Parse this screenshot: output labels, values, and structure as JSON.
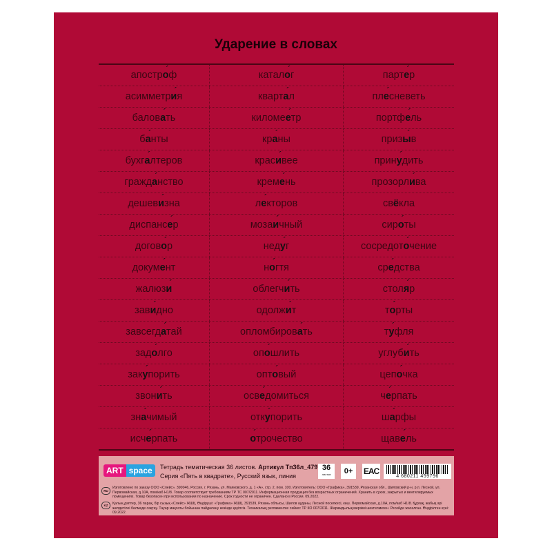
{
  "title": "Ударение в словах",
  "words": [
    [
      {
        "pre": "апостр",
        "s": "о",
        "post": "ф"
      },
      {
        "pre": "катал",
        "s": "о",
        "post": "г"
      },
      {
        "pre": "парт",
        "s": "е",
        "post": "р"
      }
    ],
    [
      {
        "pre": "асимметр",
        "s": "и",
        "post": "я"
      },
      {
        "pre": "кварт",
        "s": "а",
        "post": "л"
      },
      {
        "pre": "пл",
        "s": "е",
        "post": "сневеть"
      }
    ],
    [
      {
        "pre": "балов",
        "s": "а",
        "post": "ть"
      },
      {
        "pre": "киломе",
        "s": "е",
        "post": "тр"
      },
      {
        "pre": "портф",
        "s": "е",
        "post": "ль"
      }
    ],
    [
      {
        "pre": "б",
        "s": "а",
        "post": "нты"
      },
      {
        "pre": "кр",
        "s": "а",
        "post": "ны"
      },
      {
        "pre": "приз",
        "s": "ы",
        "post": "в"
      }
    ],
    [
      {
        "pre": "бухг",
        "s": "а",
        "post": "лтеров"
      },
      {
        "pre": "крас",
        "s": "и",
        "post": "вее"
      },
      {
        "pre": "прин",
        "s": "у",
        "post": "дить"
      }
    ],
    [
      {
        "pre": "гражд",
        "s": "а",
        "post": "нство"
      },
      {
        "pre": "крем",
        "s": "е",
        "post": "нь"
      },
      {
        "pre": "прозорл",
        "s": "и",
        "post": "ва"
      }
    ],
    [
      {
        "pre": "дешев",
        "s": "и",
        "post": "зна"
      },
      {
        "pre": "л",
        "s": "е",
        "post": "кторов"
      },
      {
        "pre": "св",
        "s": "ё",
        "post": "кла"
      }
    ],
    [
      {
        "pre": "диспанс",
        "s": "е",
        "post": "р"
      },
      {
        "pre": "моза",
        "s": "и",
        "post": "чный"
      },
      {
        "pre": "сир",
        "s": "о",
        "post": "ты"
      }
    ],
    [
      {
        "pre": "догов",
        "s": "о",
        "post": "р"
      },
      {
        "pre": "нед",
        "s": "у",
        "post": "г"
      },
      {
        "pre": "сосредот",
        "s": "о",
        "post": "чение"
      }
    ],
    [
      {
        "pre": "докум",
        "s": "е",
        "post": "нт"
      },
      {
        "pre": "н",
        "s": "о",
        "post": "гтя"
      },
      {
        "pre": "ср",
        "s": "е",
        "post": "дства"
      }
    ],
    [
      {
        "pre": "жалюз",
        "s": "и",
        "post": ""
      },
      {
        "pre": "облегч",
        "s": "и",
        "post": "ть"
      },
      {
        "pre": "столяр",
        "s": "",
        "post": ""
      }
    ],
    [
      {
        "pre": "зав",
        "s": "и",
        "post": "дно"
      },
      {
        "pre": "одолж",
        "s": "и",
        "post": "т"
      },
      {
        "pre": "т",
        "s": "о",
        "post": "рты"
      }
    ],
    [
      {
        "pre": "завсегд",
        "s": "а",
        "post": "тай"
      },
      {
        "pre": "опломбиров",
        "s": "а",
        "post": "ть"
      },
      {
        "pre": "т",
        "s": "у",
        "post": "фля"
      }
    ],
    [
      {
        "pre": "зад",
        "s": "о",
        "post": "лго"
      },
      {
        "pre": "оп",
        "s": "о",
        "post": "шлить"
      },
      {
        "pre": "углуб",
        "s": "и",
        "post": "ть"
      }
    ],
    [
      {
        "pre": "зак",
        "s": "у",
        "post": "порить"
      },
      {
        "pre": "опт",
        "s": "о",
        "post": "вый"
      },
      {
        "pre": "цеп",
        "s": "о",
        "post": "чка"
      }
    ],
    [
      {
        "pre": "звон",
        "s": "и",
        "post": "ть"
      },
      {
        "pre": "осв",
        "s": "е",
        "post": "домиться"
      },
      {
        "pre": "ч",
        "s": "е",
        "post": "рпать"
      }
    ],
    [
      {
        "pre": "зн",
        "s": "а",
        "post": "чимый"
      },
      {
        "pre": "отк",
        "s": "у",
        "post": "порить"
      },
      {
        "pre": "ш",
        "s": "а",
        "post": "рфы"
      }
    ],
    [
      {
        "pre": "исч",
        "s": "е",
        "post": "рпать"
      },
      {
        "pre": "",
        "s": "о",
        "post": "трочество"
      },
      {
        "pre": "щав",
        "s": "е",
        "post": "ль"
      }
    ]
  ],
  "panel": {
    "logo_left": "ART",
    "logo_right": "space",
    "line1": "Тетрадь тематическая 36 листов.",
    "article": "Артикул Тп36л_47979",
    "line2": "Серия «Пять в квадрате», Русский язык, линия",
    "sheets": "36",
    "sheets_sub": "листов",
    "age": "0+",
    "eac": "EAC",
    "barcode": "4 680211 459796",
    "ru_code": "RU",
    "ru_text": "Изготовлено по заказу ООО «Слейс», 390046, Россия, г. Рязань, ул. Маяковского, д. 1 «А», стр. 2, пом. 100. Изготовитель: ООО «Графика», 391539, Рязанская обл., Шиловский р-н, р.п. Лесной, ул. Первомайская, д.10А, пом/каб Н1/8. Товар соответствует требованиям ТР ТС 007/2011. Информационная продукция без возрастных ограничений. Хранить в сухих, закрытых и вентилируемых помещениях. Товар безопасен при использовании по назначению. Срок годности не ограничен. Сделано в России. 09.2022.",
    "kz_code": "KZ",
    "kz_text": "Қалың дәптер, 36 парақ, бір сызық «Слейс» ЖШҚ, Өндіруші: «Графика» ЖШҚ, 391539, Рязань облысы, Шилов ауданы, Лесной поселкесі, көш. Первомайская, д.10А, пом/каб Н1/8. Құрғақ, жабық әрі желдетілеі бөлмеде сақтау. Тауар мақсаты бойынша пайдалану кезінде қауіпсіз. Техникалық регламентке сәйкес ТР КО 007/2011. Жарамдылық мерзімі шектелмеген. Ресейде жасалған. Өндірілген күні: 09.2022."
  }
}
